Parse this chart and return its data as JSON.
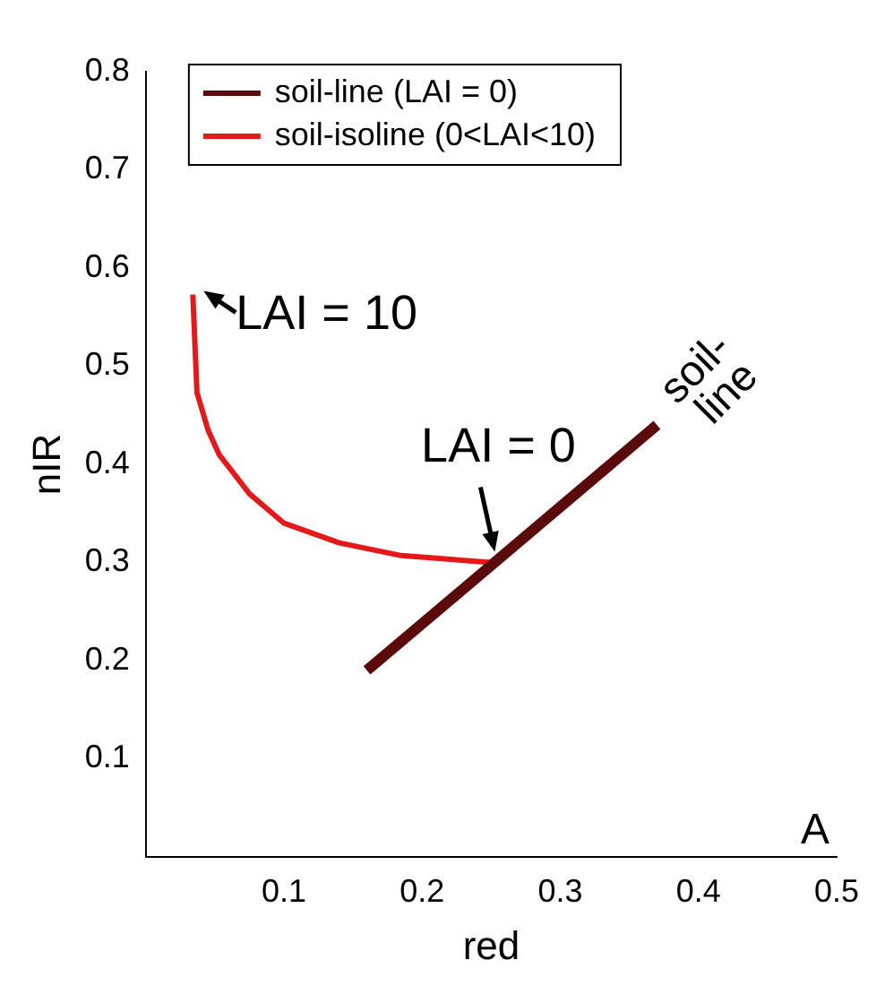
{
  "chart_data": {
    "type": "line",
    "xlabel": "red",
    "ylabel": "nIR",
    "xlim": [
      0,
      0.5
    ],
    "xticks": [
      0.1,
      0.2,
      0.3,
      0.4,
      0.5
    ],
    "ylim": [
      0,
      0.8
    ],
    "yticks": [
      0.1,
      0.2,
      0.3,
      0.4,
      0.5,
      0.6,
      0.7,
      0.8
    ],
    "series": [
      {
        "name": "soil-line (LAI = 0)",
        "color": "#5a0a0a",
        "x": [
          0.16,
          0.37
        ],
        "values": [
          0.19,
          0.44
        ]
      },
      {
        "name": "soil-isoline (0<LAI<10)",
        "color": "#e3191c",
        "x": [
          0.034,
          0.037,
          0.045,
          0.053,
          0.075,
          0.1,
          0.14,
          0.185,
          0.25
        ],
        "values": [
          0.573,
          0.473,
          0.435,
          0.41,
          0.37,
          0.34,
          0.32,
          0.307,
          0.3
        ]
      }
    ],
    "annotations": [
      {
        "text": "LAI = 10",
        "x": 0.034,
        "y": 0.573
      },
      {
        "text": "LAI = 0",
        "x": 0.25,
        "y": 0.3
      },
      {
        "text": "soil-line",
        "x": 0.37,
        "y": 0.44
      },
      "A"
    ],
    "legend": "top left",
    "grid": false,
    "marker": "none",
    "line_style": "solid"
  }
}
